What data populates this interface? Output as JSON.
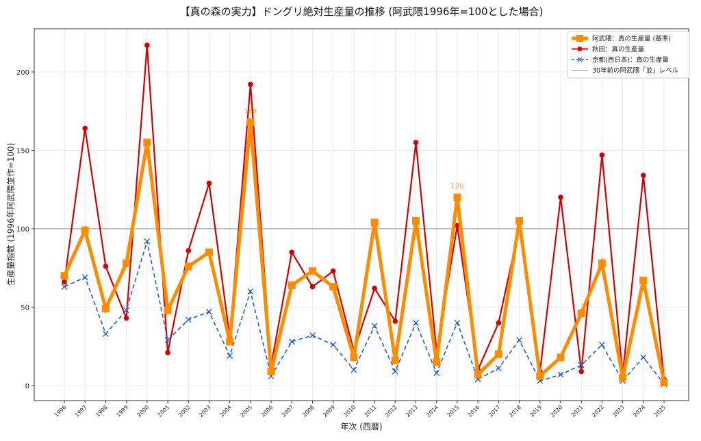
{
  "chart_data": {
    "type": "line",
    "title": "【真の森の実力】ドングリ絶対生産量の推移 (阿武隈1996年=100とした場合)",
    "xlabel": "年次 (西暦)",
    "ylabel": "生産量指数 (1996年阿武隈並作=100)",
    "ylim": [
      -9.6,
      227.5
    ],
    "yticks": [
      0,
      50,
      100,
      150,
      200
    ],
    "grid": true,
    "legend_position": "top-right",
    "x": [
      1996,
      1997,
      1998,
      1999,
      2000,
      2001,
      2002,
      2003,
      2004,
      2005,
      2006,
      2007,
      2008,
      2009,
      2010,
      2011,
      2012,
      2013,
      2014,
      2015,
      2016,
      2017,
      2018,
      2019,
      2020,
      2021,
      2022,
      2023,
      2024,
      2025
    ],
    "series": [
      {
        "name": "秋田：真の生産量",
        "color": "#d40000",
        "style": "solid-circle",
        "values": [
          66,
          164,
          76,
          43,
          217,
          21,
          86,
          129,
          31,
          192,
          13,
          85,
          63,
          73,
          22,
          62,
          41,
          155,
          22,
          102,
          10,
          40,
          101,
          9,
          120,
          9,
          147,
          7,
          134,
          4
        ]
      },
      {
        "name": "京都(西日本)：真の生産量",
        "color": "#1f5bd6",
        "style": "dashed-x",
        "values": [
          63,
          69,
          33,
          48,
          92,
          29,
          42,
          47,
          19,
          60,
          6,
          28,
          32,
          26,
          10,
          38,
          9,
          40,
          8,
          40,
          4,
          11,
          29,
          3,
          7,
          13,
          26,
          3,
          18,
          1
        ]
      },
      {
        "name": "阿武隈：真の生産量 (基準)",
        "color": "#ff8c00",
        "style": "thick-square",
        "values": [
          70,
          99,
          49,
          78,
          155,
          48,
          76,
          85,
          28,
          168,
          9,
          64,
          73,
          63,
          18,
          104,
          16,
          105,
          15,
          120,
          7,
          20,
          105,
          6,
          18,
          46,
          78,
          5,
          67,
          2
        ]
      }
    ],
    "reference_line": {
      "name": "30年前の阿武隈「並」レベル",
      "value": 100,
      "color": "#999999"
    },
    "annotations": [
      {
        "x": 2005,
        "text": "168"
      },
      {
        "x": 2015,
        "text": "120"
      },
      {
        "x": 2025,
        "text": "2"
      }
    ],
    "legend": [
      {
        "label": "阿武隈：真の生産量 (基準)",
        "color": "#ff8c00"
      },
      {
        "label": "秋田：真の生産量",
        "color": "#d40000"
      },
      {
        "label": "京都(西日本)：真の生産量",
        "color": "#1f5bd6"
      },
      {
        "label": "30年前の阿武隈「並」レベル",
        "color": "#999999"
      }
    ]
  }
}
